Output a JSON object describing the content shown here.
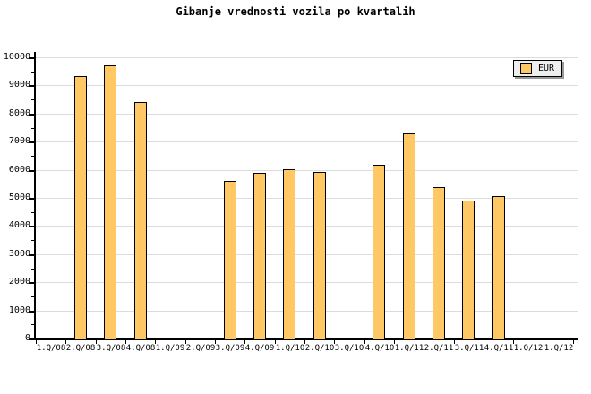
{
  "title": "Gibanje vrednosti vozila po kvartalih",
  "legend": {
    "series_label": "EUR",
    "swatch_color": "#ffc865"
  },
  "colors": {
    "background": "#ffffff",
    "bar_fill": "#ffc865",
    "bar_border": "#000000",
    "gridline": "#dcdcdc",
    "axis": "#000000",
    "legend_bg": "#eeeeee",
    "legend_shadow": "#999999",
    "text": "#000000"
  },
  "chart_data": {
    "type": "bar",
    "title": "Gibanje vrednosti vozila po kvartalih",
    "series_name": "EUR",
    "categories": [
      "1.Q/08",
      "2.Q/08",
      "3.Q/08",
      "4.Q/08",
      "1.Q/09",
      "2.Q/09",
      "3.Q/09",
      "4.Q/09",
      "1.Q/10",
      "2.Q/10",
      "3.Q/10",
      "4.Q/10",
      "1.Q/11",
      "2.Q/11",
      "3.Q/11",
      "4.Q/11",
      "1.Q/12",
      "1.Q/12"
    ],
    "values": [
      null,
      9330,
      9720,
      8410,
      null,
      null,
      5590,
      5900,
      6010,
      5920,
      null,
      6180,
      7290,
      5390,
      4900,
      5070,
      null,
      null
    ],
    "xlabel": "",
    "ylabel": "",
    "ylim": [
      0,
      10000
    ],
    "y_tick_step": 1000,
    "y_minor_tick_step": 500,
    "y_tick_labels": [
      "0",
      "1000",
      "2000",
      "3000",
      "4000",
      "5000",
      "6000",
      "7000",
      "8000",
      "9000",
      "10000"
    ],
    "grid": "horizontal",
    "legend_position": "top-right"
  }
}
